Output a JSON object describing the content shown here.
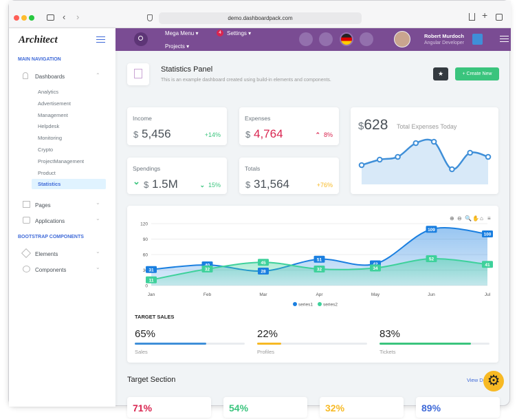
{
  "browser": {
    "url": "demo.dashboardpack.com"
  },
  "sidebar": {
    "logo": "Architect",
    "main_title": "MAIN NAVIGATION",
    "dashboards": "Dashboards",
    "dashboard_items": [
      "Analytics",
      "Advertisement",
      "Management",
      "Helpdesk",
      "Monitoring",
      "Crypto",
      "ProjectManagement",
      "Product",
      "Statistics"
    ],
    "active_item": 8,
    "pages": "Pages",
    "applications": "Applications",
    "components_title": "BOOTSTRAP COMPONENTS",
    "elements": "Elements",
    "components": "Components"
  },
  "header": {
    "mega_menu": "Mega Menu",
    "projects": "Projects",
    "settings": "Settings",
    "settings_badge": 4,
    "user_name": "Robert Murdoch",
    "user_role": "Angular Developer"
  },
  "page_title": {
    "title": "Statistics Panel",
    "subtitle": "This is an example dashboard created using build-in elements and components.",
    "button": "Create New"
  },
  "stats": [
    {
      "label": "Income",
      "currency": "$",
      "value": "5,456",
      "change": "+14%",
      "value_color": "#495057",
      "change_color": "#3ac47d"
    },
    {
      "label": "Expenses",
      "currency": "$",
      "value": "4,764",
      "change": "8%",
      "value_color": "#d92550",
      "change_color": "#d92550"
    },
    {
      "label": "Spendings",
      "currency": "$",
      "value": "1.5M",
      "change": "15%",
      "value_color": "#495057",
      "change_color": "#3ac47d"
    },
    {
      "label": "Totals",
      "currency": "$",
      "value": "31,564",
      "change": "+76%",
      "value_color": "#495057",
      "change_color": "#f7b924"
    }
  ],
  "total_expenses": {
    "currency": "$",
    "amount": 628,
    "label": "Total Expenses Today"
  },
  "chart_data": [
    {
      "type": "line",
      "color": "#3f8fd8",
      "values": [
        16,
        24,
        28,
        48,
        50,
        10,
        34,
        28
      ]
    },
    {
      "type": "area",
      "categories": [
        "Jan",
        "Feb",
        "Mar",
        "Apr",
        "May",
        "Jun",
        "Jul"
      ],
      "series": [
        {
          "name": "series1",
          "color": "#1a7fe0",
          "values": [
            31,
            40,
            28,
            51,
            42,
            109,
            100
          ]
        },
        {
          "name": "series2",
          "color": "#3ed19b",
          "values": [
            11,
            32,
            45,
            32,
            34,
            52,
            41
          ]
        }
      ],
      "ylim": [
        0,
        120
      ],
      "yticks": [
        0,
        30,
        60,
        90,
        120
      ],
      "grid": true,
      "legend": "bottom"
    }
  ],
  "target_sales": {
    "title": "TARGET SALES",
    "items": [
      {
        "value": 65,
        "value_label": "65%",
        "label": "Sales",
        "color": "#3f8fd8"
      },
      {
        "value": 22,
        "value_label": "22%",
        "label": "Profiles",
        "color": "#f7b924"
      },
      {
        "value": 83,
        "value_label": "83%",
        "label": "Tickets",
        "color": "#3ac47d"
      }
    ]
  },
  "target_section": {
    "title": "Target Section",
    "link": "View Details",
    "cards": [
      {
        "text": "71%",
        "color": "#d92550"
      },
      {
        "text": "54%",
        "color": "#3ac47d"
      },
      {
        "text": "32%",
        "color": "#f7b924"
      },
      {
        "text": "89%",
        "color": "#3f6ad8"
      }
    ]
  }
}
